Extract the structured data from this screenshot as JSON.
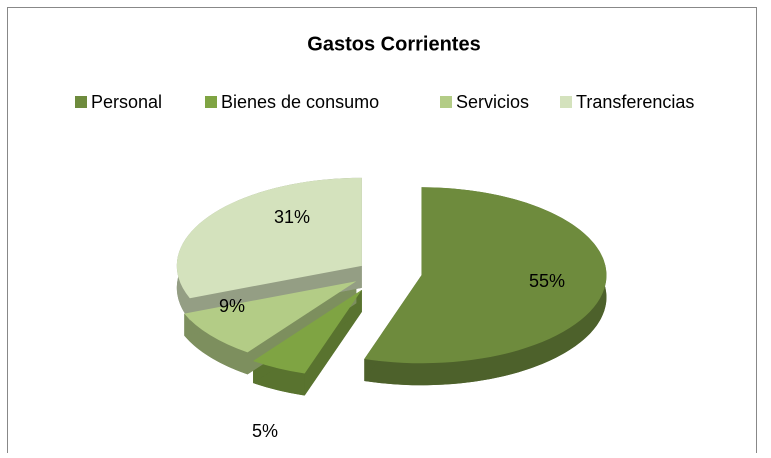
{
  "chart_data": {
    "type": "pie",
    "title": "Gastos Corrientes",
    "categories": [
      "Personal",
      "Bienes de consumo",
      "Servicios",
      "Transferencias"
    ],
    "values": [
      55,
      5,
      9,
      31
    ],
    "value_labels": [
      "55%",
      "5%",
      "9%",
      "31%"
    ],
    "colors": [
      "#6e8b3d",
      "#7fa443",
      "#b3cc86",
      "#d4e2bd"
    ],
    "legend": "top"
  }
}
